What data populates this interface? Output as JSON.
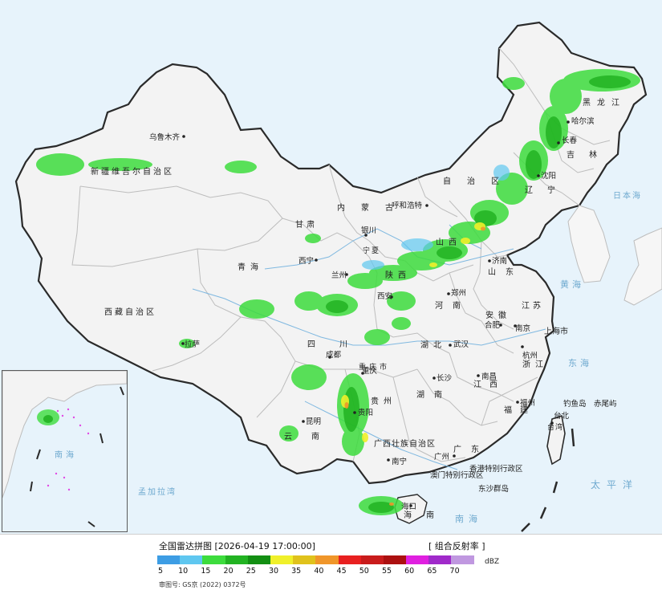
{
  "map": {
    "province_labels": [
      "新疆维吾尔自治区",
      "西藏自治区",
      "青海",
      "甘肃",
      "内蒙古",
      "自治区",
      "黑龙江",
      "吉林",
      "辽宁",
      "四川",
      "云南",
      "贵州",
      "湖南",
      "湖北",
      "江西",
      "浙江",
      "安徽",
      "江苏",
      "山东",
      "河南",
      "山西",
      "陕西",
      "宁夏",
      "福建",
      "广东",
      "广西壮族自治区",
      "海南",
      "台湾",
      "重庆市",
      "上海市"
    ],
    "cities": [
      "乌鲁木齐",
      "拉萨",
      "西宁",
      "兰州",
      "银川",
      "呼和浩特",
      "哈尔滨",
      "长春",
      "沈阳",
      "济南",
      "郑州",
      "西安",
      "成都",
      "重庆",
      "贵阳",
      "昆明",
      "南宁",
      "广州",
      "长沙",
      "南昌",
      "福州",
      "武汉",
      "合肥",
      "南京",
      "杭州",
      "海口",
      "台北"
    ],
    "sea_labels": [
      "日本海",
      "黄海",
      "东海",
      "太平洋",
      "南海",
      "孟加拉湾"
    ],
    "islands": [
      "钓鱼岛",
      "赤尾屿",
      "东沙群岛"
    ],
    "special_regions": [
      "香港特别行政区",
      "澳门特别行政区"
    ],
    "inset_labels": [
      "南海"
    ],
    "colors": {
      "land": "#f3f3f3",
      "sea": "#e7f3fb",
      "border": "#2a2a2a",
      "province_line": "#bdbdbd",
      "river": "#7fb8e0"
    }
  },
  "footer": {
    "title": "全国雷达拼图 [2026-04-19 17:00:00]",
    "product": "[ 组合反射率 ]",
    "unit": "dBZ",
    "approval": "审图号: GS京 (2022) 0372号",
    "legend_colors": [
      "#3d9de4",
      "#5fc7f0",
      "#3ddc3d",
      "#22b322",
      "#138f13",
      "#f0f02a",
      "#e0c21c",
      "#f0962a",
      "#e82020",
      "#c91c1c",
      "#ac1010",
      "#e020e0",
      "#a02aca",
      "#c098e0"
    ],
    "legend_ticks": [
      "5",
      "10",
      "15",
      "20",
      "25",
      "30",
      "35",
      "40",
      "45",
      "50",
      "55",
      "60",
      "65",
      "70"
    ]
  }
}
